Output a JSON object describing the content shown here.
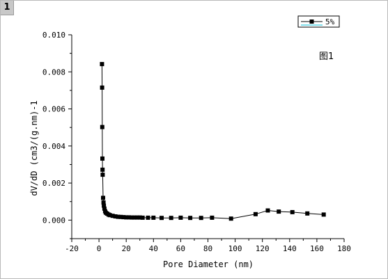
{
  "sheet_tab": {
    "label": "1"
  },
  "chart_data": {
    "type": "line",
    "title": "",
    "xlabel": "Pore Diameter (nm)",
    "ylabel": "dV/dD (cm3/(g.nm)-1",
    "xlim": [
      -20,
      180
    ],
    "ylim": [
      -0.001,
      0.01
    ],
    "xticks": [
      -20,
      0,
      20,
      40,
      60,
      80,
      100,
      120,
      140,
      160,
      180
    ],
    "xtick_labels": [
      "-20",
      "0",
      "20",
      "40",
      "60",
      "80",
      "100",
      "120",
      "140",
      "160",
      "180"
    ],
    "yticks": [
      0.0,
      0.002,
      0.004,
      0.006,
      0.008,
      0.01
    ],
    "ytick_labels": [
      "0.000",
      "0.002",
      "0.004",
      "0.006",
      "0.008",
      "0.010"
    ],
    "grid": false,
    "legend": {
      "position": "top-right"
    },
    "annotation": "图1",
    "colors": {
      "series": "#000000",
      "legend_line": "#00bcd4"
    },
    "series": [
      {
        "name": "5%",
        "marker": "square",
        "points": [
          [
            2.2,
            0.00842
          ],
          [
            2.3,
            0.00715
          ],
          [
            2.4,
            0.00502
          ],
          [
            2.5,
            0.00332
          ],
          [
            2.6,
            0.00272
          ],
          [
            2.7,
            0.00245
          ],
          [
            3.0,
            0.0012
          ],
          [
            3.3,
            0.00095
          ],
          [
            3.6,
            0.00078
          ],
          [
            4.0,
            0.00062
          ],
          [
            4.5,
            0.00048
          ],
          [
            5.0,
            0.0004
          ],
          [
            6.0,
            0.00035
          ],
          [
            7.0,
            0.0003
          ],
          [
            8.0,
            0.00027
          ],
          [
            10.0,
            0.00023
          ],
          [
            12.0,
            0.0002
          ],
          [
            14.0,
            0.00018
          ],
          [
            16.0,
            0.00017
          ],
          [
            18.0,
            0.00016
          ],
          [
            20.0,
            0.00015
          ],
          [
            22.0,
            0.00015
          ],
          [
            24.0,
            0.00014
          ],
          [
            26.0,
            0.00014
          ],
          [
            28.0,
            0.00014
          ],
          [
            30.0,
            0.00014
          ],
          [
            32.0,
            0.00013
          ],
          [
            36.0,
            0.00013
          ],
          [
            40.0,
            0.00013
          ],
          [
            46.0,
            0.00012
          ],
          [
            53.0,
            0.00012
          ],
          [
            60.0,
            0.00013
          ],
          [
            67.0,
            0.00012
          ],
          [
            75.0,
            0.00012
          ],
          [
            83.0,
            0.00013
          ],
          [
            97.0,
            8e-05
          ],
          [
            115.0,
            0.00032
          ],
          [
            124.0,
            0.00052
          ],
          [
            132.0,
            0.00046
          ],
          [
            142.0,
            0.00043
          ],
          [
            153.0,
            0.00036
          ],
          [
            165.0,
            0.0003
          ]
        ]
      }
    ]
  }
}
